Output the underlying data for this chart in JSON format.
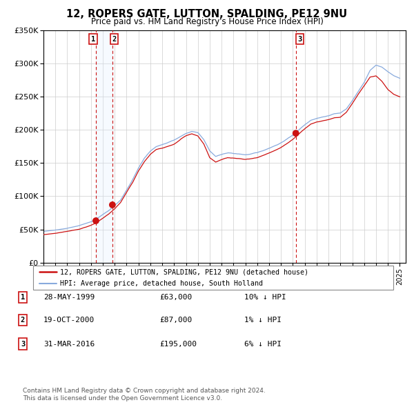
{
  "title": "12, ROPERS GATE, LUTTON, SPALDING, PE12 9NU",
  "subtitle": "Price paid vs. HM Land Registry's House Price Index (HPI)",
  "ylim": [
    0,
    350000
  ],
  "yticks": [
    0,
    50000,
    100000,
    150000,
    200000,
    250000,
    300000,
    350000
  ],
  "ytick_labels": [
    "£0",
    "£50K",
    "£100K",
    "£150K",
    "£200K",
    "£250K",
    "£300K",
    "£350K"
  ],
  "xlim_start": 1995.0,
  "xlim_end": 2025.5,
  "xticks": [
    1995,
    1996,
    1997,
    1998,
    1999,
    2000,
    2001,
    2002,
    2003,
    2004,
    2005,
    2006,
    2007,
    2008,
    2009,
    2010,
    2011,
    2012,
    2013,
    2014,
    2015,
    2016,
    2017,
    2018,
    2019,
    2020,
    2021,
    2022,
    2023,
    2024,
    2025
  ],
  "sale_dates": [
    1999.413,
    2000.803,
    2016.247
  ],
  "sale_prices": [
    63000,
    87000,
    195000
  ],
  "hpi_color": "#88aadd",
  "price_color": "#cc1111",
  "vline_color": "#cc1111",
  "vspan_color": "#ddeeff",
  "legend_line1": "12, ROPERS GATE, LUTTON, SPALDING, PE12 9NU (detached house)",
  "legend_line2": "HPI: Average price, detached house, South Holland",
  "table_rows": [
    {
      "num": "1",
      "date": "28-MAY-1999",
      "price": "£63,000",
      "note": "10% ↓ HPI"
    },
    {
      "num": "2",
      "date": "19-OCT-2000",
      "price": "£87,000",
      "note": "1% ↓ HPI"
    },
    {
      "num": "3",
      "date": "31-MAR-2016",
      "price": "£195,000",
      "note": "6% ↓ HPI"
    }
  ],
  "footnote1": "Contains HM Land Registry data © Crown copyright and database right 2024.",
  "footnote2": "This data is licensed under the Open Government Licence v3.0.",
  "grid_color": "#cccccc",
  "hpi_keypoints": [
    [
      1995.0,
      47000
    ],
    [
      1996.0,
      49000
    ],
    [
      1997.0,
      52000
    ],
    [
      1998.0,
      56000
    ],
    [
      1999.0,
      62000
    ],
    [
      1999.5,
      67000
    ],
    [
      2000.0,
      73000
    ],
    [
      2000.5,
      79000
    ],
    [
      2001.0,
      87000
    ],
    [
      2001.5,
      95000
    ],
    [
      2002.0,
      110000
    ],
    [
      2002.5,
      125000
    ],
    [
      2003.0,
      143000
    ],
    [
      2003.5,
      158000
    ],
    [
      2004.0,
      168000
    ],
    [
      2004.5,
      175000
    ],
    [
      2005.0,
      178000
    ],
    [
      2005.5,
      181000
    ],
    [
      2006.0,
      185000
    ],
    [
      2006.5,
      190000
    ],
    [
      2007.0,
      195000
    ],
    [
      2007.5,
      198000
    ],
    [
      2008.0,
      196000
    ],
    [
      2008.5,
      185000
    ],
    [
      2009.0,
      168000
    ],
    [
      2009.5,
      160000
    ],
    [
      2010.0,
      163000
    ],
    [
      2010.5,
      165000
    ],
    [
      2011.0,
      164000
    ],
    [
      2011.5,
      163000
    ],
    [
      2012.0,
      162000
    ],
    [
      2012.5,
      163000
    ],
    [
      2013.0,
      165000
    ],
    [
      2013.5,
      168000
    ],
    [
      2014.0,
      172000
    ],
    [
      2014.5,
      176000
    ],
    [
      2015.0,
      180000
    ],
    [
      2015.5,
      186000
    ],
    [
      2016.0,
      192000
    ],
    [
      2016.5,
      200000
    ],
    [
      2017.0,
      208000
    ],
    [
      2017.5,
      215000
    ],
    [
      2018.0,
      218000
    ],
    [
      2018.5,
      220000
    ],
    [
      2019.0,
      222000
    ],
    [
      2019.5,
      225000
    ],
    [
      2020.0,
      226000
    ],
    [
      2020.5,
      232000
    ],
    [
      2021.0,
      244000
    ],
    [
      2021.5,
      258000
    ],
    [
      2022.0,
      272000
    ],
    [
      2022.5,
      290000
    ],
    [
      2023.0,
      298000
    ],
    [
      2023.5,
      295000
    ],
    [
      2024.0,
      288000
    ],
    [
      2024.5,
      282000
    ],
    [
      2025.0,
      278000
    ]
  ],
  "price_keypoints": [
    [
      1995.0,
      42000
    ],
    [
      1996.0,
      44000
    ],
    [
      1997.0,
      47000
    ],
    [
      1998.0,
      50000
    ],
    [
      1999.0,
      56000
    ],
    [
      1999.5,
      60000
    ],
    [
      2000.0,
      66000
    ],
    [
      2000.5,
      72000
    ],
    [
      2001.0,
      80000
    ],
    [
      2001.5,
      90000
    ],
    [
      2002.0,
      105000
    ],
    [
      2002.5,
      120000
    ],
    [
      2003.0,
      138000
    ],
    [
      2003.5,
      152000
    ],
    [
      2004.0,
      163000
    ],
    [
      2004.5,
      170000
    ],
    [
      2005.0,
      172000
    ],
    [
      2005.5,
      175000
    ],
    [
      2006.0,
      178000
    ],
    [
      2006.5,
      184000
    ],
    [
      2007.0,
      190000
    ],
    [
      2007.5,
      193000
    ],
    [
      2008.0,
      190000
    ],
    [
      2008.5,
      178000
    ],
    [
      2009.0,
      157000
    ],
    [
      2009.5,
      150000
    ],
    [
      2010.0,
      154000
    ],
    [
      2010.5,
      157000
    ],
    [
      2011.0,
      156000
    ],
    [
      2011.5,
      155000
    ],
    [
      2012.0,
      154000
    ],
    [
      2012.5,
      155000
    ],
    [
      2013.0,
      157000
    ],
    [
      2013.5,
      160000
    ],
    [
      2014.0,
      164000
    ],
    [
      2014.5,
      168000
    ],
    [
      2015.0,
      172000
    ],
    [
      2015.5,
      178000
    ],
    [
      2016.0,
      184000
    ],
    [
      2016.5,
      192000
    ],
    [
      2017.0,
      200000
    ],
    [
      2017.5,
      207000
    ],
    [
      2018.0,
      210000
    ],
    [
      2018.5,
      212000
    ],
    [
      2019.0,
      214000
    ],
    [
      2019.5,
      217000
    ],
    [
      2020.0,
      218000
    ],
    [
      2020.5,
      225000
    ],
    [
      2021.0,
      238000
    ],
    [
      2021.5,
      252000
    ],
    [
      2022.0,
      265000
    ],
    [
      2022.5,
      278000
    ],
    [
      2023.0,
      280000
    ],
    [
      2023.5,
      272000
    ],
    [
      2024.0,
      260000
    ],
    [
      2024.5,
      253000
    ],
    [
      2025.0,
      250000
    ]
  ]
}
